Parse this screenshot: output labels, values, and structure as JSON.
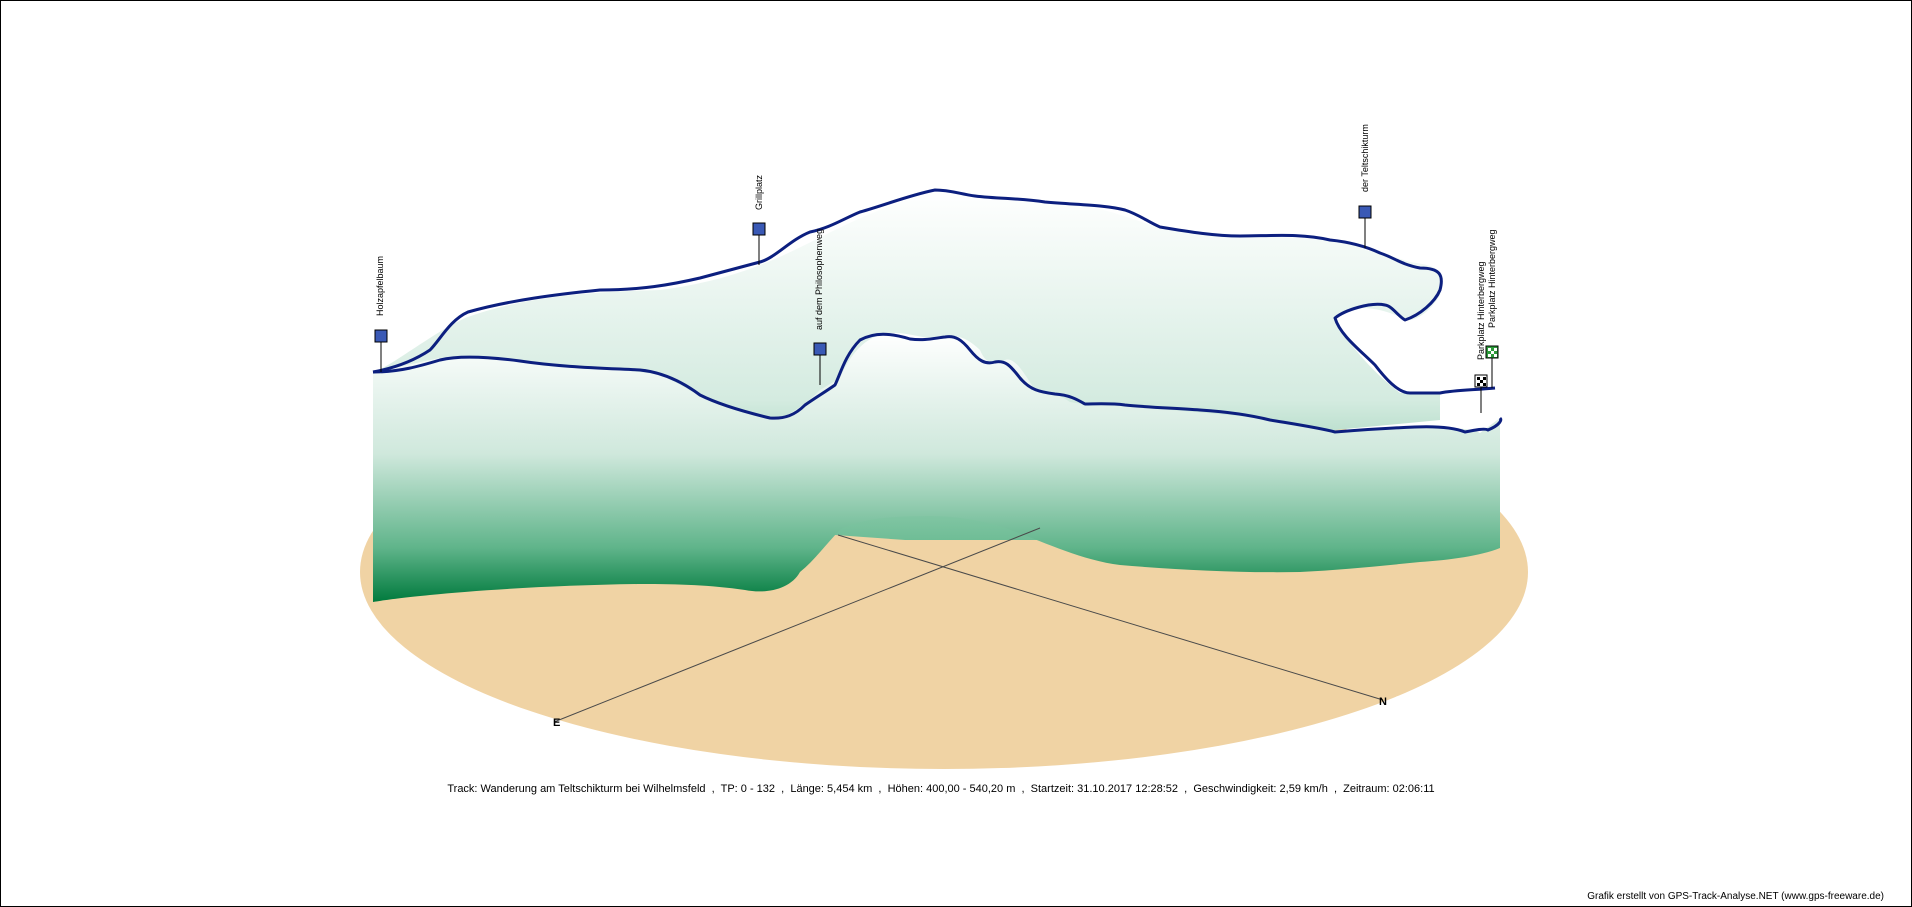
{
  "colors": {
    "base": "#f0d3a4",
    "wall_dark": "#007a3d",
    "wall_light": "#ffffff",
    "track": "#0c1f7f",
    "waypoint_icon": "#3a59b5",
    "finish_flag": "#2c9b3a"
  },
  "compass": {
    "east": "E",
    "north": "N"
  },
  "waypoints": [
    {
      "label": "Holzapfelbaum",
      "icon": "photo-icon"
    },
    {
      "label": "Grillplatz",
      "icon": "grill-icon"
    },
    {
      "label": "auf dem Philosophenweg",
      "icon": "photo-icon"
    },
    {
      "label": "der Teltschikturm",
      "icon": "photo-icon"
    },
    {
      "label": "Parkplatz Hinterbergweg",
      "icon": "start-flag-icon"
    },
    {
      "label": "Parkplatz Hinterbergweg",
      "icon": "finish-flag-icon"
    }
  ],
  "info": {
    "track": "Track: Wanderung am Teltschikturm bei Wilhelmsfeld",
    "tp": "TP: 0 - 132",
    "length": "Länge: 5,454 km",
    "heights": "Höhen: 400,00 - 540,20 m",
    "start": "Startzeit: 31.10.2017 12:28:52",
    "speed": "Geschwindigkeit: 2,59 km/h",
    "duration": "Zeitraum: 02:06:11",
    "separator": "  ,  "
  },
  "credit": "Grafik erstellt von GPS-Track-Analyse.NET (www.gps-freeware.de)"
}
